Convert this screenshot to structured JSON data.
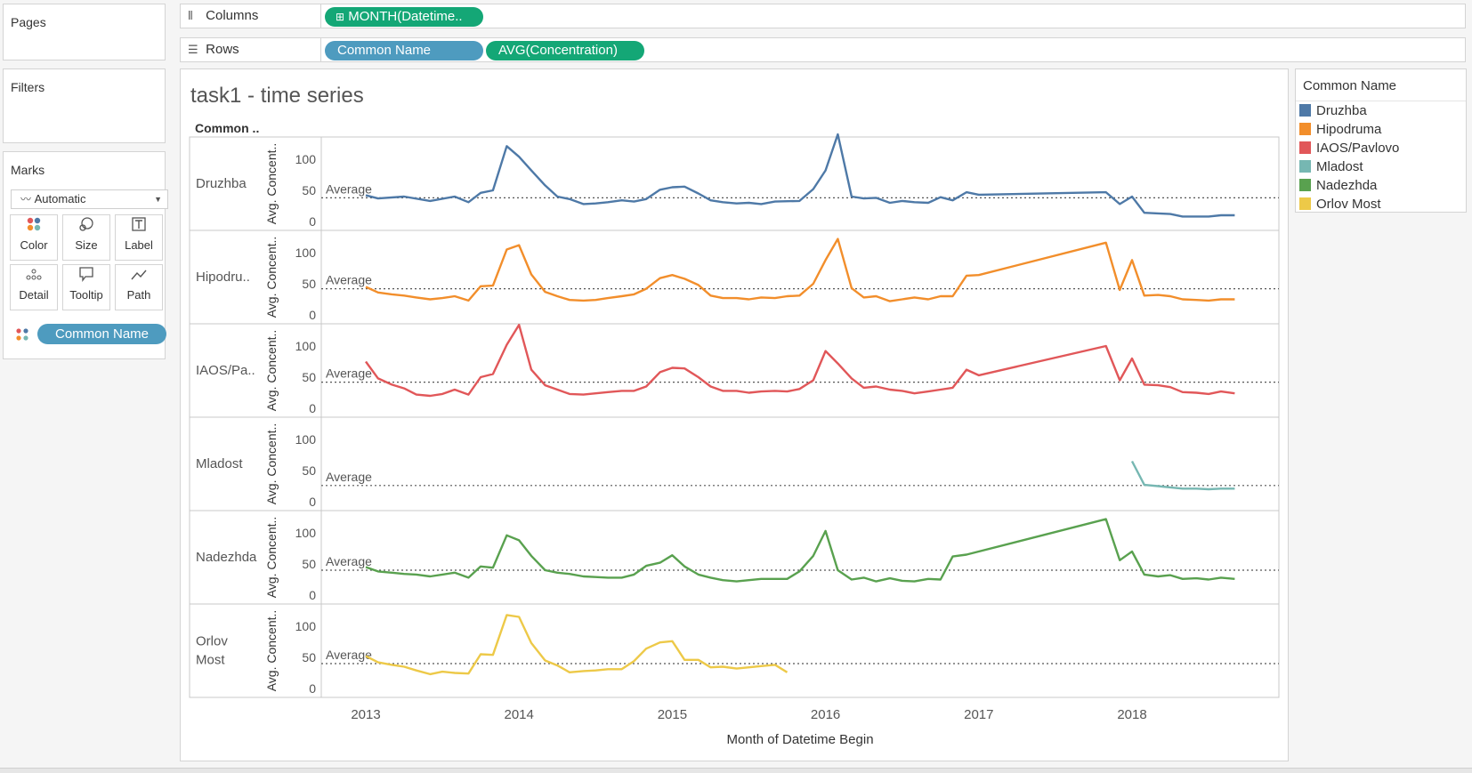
{
  "pages": {
    "title": "Pages"
  },
  "filters": {
    "title": "Filters"
  },
  "columns": {
    "label": "Columns",
    "icon": "columns-icon",
    "pill": "MONTH(Datetime.."
  },
  "rows": {
    "label": "Rows",
    "icon": "rows-icon",
    "pills": [
      "Common Name",
      "AVG(Concentration)"
    ]
  },
  "marks": {
    "title": "Marks",
    "type": "Automatic",
    "buttons": [
      "Color",
      "Size",
      "Label",
      "Detail",
      "Tooltip",
      "Path"
    ],
    "pill": "Common Name"
  },
  "viz": {
    "title": "task1 - time series",
    "row_header": "Common ..",
    "y_axis_title": "Avg. Concent..",
    "ref_line_label": "Average",
    "x_axis_title": "Month of Datetime Begin",
    "x_ticks": [
      "2013",
      "2014",
      "2015",
      "2016",
      "2017",
      "2018"
    ],
    "y_ticks": [
      "100",
      "50",
      "0"
    ]
  },
  "legend": {
    "title": "Common Name",
    "items": [
      {
        "label": "Druzhba",
        "color": "#4e79a7"
      },
      {
        "label": "Hipodruma",
        "color": "#f28e2b"
      },
      {
        "label": "IAOS/Pavlovo",
        "color": "#e15759"
      },
      {
        "label": "Mladost",
        "color": "#76b7b2"
      },
      {
        "label": "Nadezhda",
        "color": "#59a14f"
      },
      {
        "label": "Orlov Most",
        "color": "#edc948"
      }
    ]
  },
  "chart_data": {
    "type": "line",
    "title": "task1 - time series",
    "xlabel": "Month of Datetime Begin",
    "ylabel": "Avg. Concent..",
    "x_ticks": [
      "2013",
      "2014",
      "2015",
      "2016",
      "2017",
      "2018"
    ],
    "ylim": [
      0,
      140
    ],
    "reference_line": "Average",
    "panels": [
      {
        "name": "Druzhba",
        "header": "Druzhba",
        "color": "#4e79a7",
        "average": 38,
        "points": [
          [
            2013.0,
            42
          ],
          [
            2013.08,
            37
          ],
          [
            2013.25,
            40
          ],
          [
            2013.42,
            33
          ],
          [
            2013.58,
            40
          ],
          [
            2013.67,
            31
          ],
          [
            2013.75,
            46
          ],
          [
            2013.83,
            50
          ],
          [
            2013.92,
            121
          ],
          [
            2014.0,
            104
          ],
          [
            2014.08,
            82
          ],
          [
            2014.17,
            58
          ],
          [
            2014.25,
            40
          ],
          [
            2014.33,
            36
          ],
          [
            2014.42,
            28
          ],
          [
            2014.5,
            29
          ],
          [
            2014.58,
            31
          ],
          [
            2014.67,
            34
          ],
          [
            2014.75,
            32
          ],
          [
            2014.83,
            36
          ],
          [
            2014.92,
            51
          ],
          [
            2015.0,
            55
          ],
          [
            2015.08,
            56
          ],
          [
            2015.17,
            45
          ],
          [
            2015.25,
            34
          ],
          [
            2015.33,
            31
          ],
          [
            2015.42,
            29
          ],
          [
            2015.5,
            30
          ],
          [
            2015.58,
            28
          ],
          [
            2015.67,
            32
          ],
          [
            2015.83,
            33
          ],
          [
            2015.92,
            52
          ],
          [
            2016.0,
            82
          ],
          [
            2016.08,
            140
          ],
          [
            2016.17,
            40
          ],
          [
            2016.25,
            37
          ],
          [
            2016.33,
            38
          ],
          [
            2016.42,
            30
          ],
          [
            2016.5,
            33
          ],
          [
            2016.58,
            31
          ],
          [
            2016.67,
            30
          ],
          [
            2016.75,
            39
          ],
          [
            2016.83,
            34
          ],
          [
            2016.92,
            47
          ],
          [
            2017.0,
            43
          ],
          [
            2017.83,
            47
          ],
          [
            2017.92,
            28
          ],
          [
            2018.0,
            40
          ],
          [
            2018.08,
            14
          ],
          [
            2018.17,
            13
          ],
          [
            2018.25,
            12
          ],
          [
            2018.33,
            8
          ],
          [
            2018.42,
            8
          ],
          [
            2018.5,
            8
          ],
          [
            2018.58,
            10
          ],
          [
            2018.67,
            10
          ]
        ]
      },
      {
        "name": "Hipodruma",
        "header": "Hipodru..",
        "color": "#f28e2b",
        "average": 42,
        "points": [
          [
            2013.0,
            45
          ],
          [
            2013.08,
            36
          ],
          [
            2013.17,
            33
          ],
          [
            2013.25,
            31
          ],
          [
            2013.33,
            28
          ],
          [
            2013.42,
            25
          ],
          [
            2013.5,
            27
          ],
          [
            2013.58,
            30
          ],
          [
            2013.67,
            23
          ],
          [
            2013.75,
            46
          ],
          [
            2013.83,
            47
          ],
          [
            2013.92,
            105
          ],
          [
            2014.0,
            112
          ],
          [
            2014.08,
            65
          ],
          [
            2014.17,
            37
          ],
          [
            2014.25,
            30
          ],
          [
            2014.33,
            24
          ],
          [
            2014.42,
            23
          ],
          [
            2014.5,
            24
          ],
          [
            2014.58,
            27
          ],
          [
            2014.67,
            30
          ],
          [
            2014.75,
            33
          ],
          [
            2014.83,
            42
          ],
          [
            2014.92,
            59
          ],
          [
            2015.0,
            64
          ],
          [
            2015.08,
            58
          ],
          [
            2015.17,
            48
          ],
          [
            2015.25,
            31
          ],
          [
            2015.33,
            27
          ],
          [
            2015.42,
            27
          ],
          [
            2015.5,
            25
          ],
          [
            2015.58,
            28
          ],
          [
            2015.67,
            27
          ],
          [
            2015.75,
            30
          ],
          [
            2015.83,
            31
          ],
          [
            2015.92,
            50
          ],
          [
            2016.0,
            88
          ],
          [
            2016.08,
            122
          ],
          [
            2016.17,
            43
          ],
          [
            2016.25,
            28
          ],
          [
            2016.33,
            30
          ],
          [
            2016.42,
            22
          ],
          [
            2016.5,
            25
          ],
          [
            2016.58,
            28
          ],
          [
            2016.67,
            25
          ],
          [
            2016.75,
            30
          ],
          [
            2016.83,
            30
          ],
          [
            2016.92,
            63
          ],
          [
            2017.0,
            64
          ],
          [
            2017.83,
            116
          ],
          [
            2017.92,
            40
          ],
          [
            2018.0,
            88
          ],
          [
            2018.08,
            31
          ],
          [
            2018.17,
            32
          ],
          [
            2018.25,
            30
          ],
          [
            2018.33,
            25
          ],
          [
            2018.42,
            24
          ],
          [
            2018.5,
            23
          ],
          [
            2018.58,
            25
          ],
          [
            2018.67,
            25
          ]
        ]
      },
      {
        "name": "IAOS/Pavlovo",
        "header": "IAOS/Pa..",
        "color": "#e15759",
        "average": 42,
        "points": [
          [
            2013.0,
            75
          ],
          [
            2013.08,
            48
          ],
          [
            2013.17,
            38
          ],
          [
            2013.25,
            32
          ],
          [
            2013.33,
            22
          ],
          [
            2013.42,
            20
          ],
          [
            2013.5,
            23
          ],
          [
            2013.58,
            30
          ],
          [
            2013.67,
            22
          ],
          [
            2013.75,
            50
          ],
          [
            2013.83,
            55
          ],
          [
            2013.92,
            102
          ],
          [
            2014.0,
            134
          ],
          [
            2014.08,
            62
          ],
          [
            2014.17,
            37
          ],
          [
            2014.25,
            30
          ],
          [
            2014.33,
            23
          ],
          [
            2014.42,
            22
          ],
          [
            2014.5,
            24
          ],
          [
            2014.58,
            26
          ],
          [
            2014.67,
            28
          ],
          [
            2014.75,
            28
          ],
          [
            2014.83,
            35
          ],
          [
            2014.92,
            58
          ],
          [
            2015.0,
            65
          ],
          [
            2015.08,
            64
          ],
          [
            2015.17,
            50
          ],
          [
            2015.25,
            35
          ],
          [
            2015.33,
            28
          ],
          [
            2015.42,
            28
          ],
          [
            2015.5,
            25
          ],
          [
            2015.58,
            27
          ],
          [
            2015.67,
            28
          ],
          [
            2015.75,
            27
          ],
          [
            2015.83,
            31
          ],
          [
            2015.92,
            45
          ],
          [
            2016.0,
            92
          ],
          [
            2016.08,
            72
          ],
          [
            2016.17,
            48
          ],
          [
            2016.25,
            33
          ],
          [
            2016.33,
            35
          ],
          [
            2016.42,
            30
          ],
          [
            2016.5,
            28
          ],
          [
            2016.58,
            24
          ],
          [
            2016.67,
            27
          ],
          [
            2016.75,
            30
          ],
          [
            2016.83,
            33
          ],
          [
            2016.92,
            62
          ],
          [
            2017.0,
            53
          ],
          [
            2017.83,
            100
          ],
          [
            2017.92,
            45
          ],
          [
            2018.0,
            80
          ],
          [
            2018.08,
            38
          ],
          [
            2018.17,
            37
          ],
          [
            2018.25,
            34
          ],
          [
            2018.33,
            26
          ],
          [
            2018.42,
            25
          ],
          [
            2018.5,
            23
          ],
          [
            2018.58,
            27
          ],
          [
            2018.67,
            24
          ]
        ]
      },
      {
        "name": "Mladost",
        "header": "Mladost",
        "color": "#76b7b2",
        "average": 26,
        "points": [
          [
            2018.0,
            65
          ],
          [
            2018.08,
            27
          ],
          [
            2018.17,
            25
          ],
          [
            2018.25,
            23
          ],
          [
            2018.33,
            21
          ],
          [
            2018.42,
            21
          ],
          [
            2018.5,
            20
          ],
          [
            2018.58,
            21
          ],
          [
            2018.67,
            21
          ]
        ]
      },
      {
        "name": "Nadezhda",
        "header": "Nadezhda",
        "color": "#59a14f",
        "average": 40,
        "points": [
          [
            2013.0,
            45
          ],
          [
            2013.08,
            38
          ],
          [
            2013.17,
            36
          ],
          [
            2013.25,
            34
          ],
          [
            2013.33,
            33
          ],
          [
            2013.42,
            30
          ],
          [
            2013.5,
            33
          ],
          [
            2013.58,
            36
          ],
          [
            2013.67,
            28
          ],
          [
            2013.75,
            46
          ],
          [
            2013.83,
            44
          ],
          [
            2013.92,
            96
          ],
          [
            2014.0,
            88
          ],
          [
            2014.08,
            63
          ],
          [
            2014.17,
            40
          ],
          [
            2014.25,
            36
          ],
          [
            2014.33,
            34
          ],
          [
            2014.42,
            30
          ],
          [
            2014.5,
            29
          ],
          [
            2014.58,
            28
          ],
          [
            2014.67,
            28
          ],
          [
            2014.75,
            33
          ],
          [
            2014.83,
            47
          ],
          [
            2014.92,
            52
          ],
          [
            2015.0,
            64
          ],
          [
            2015.08,
            46
          ],
          [
            2015.17,
            33
          ],
          [
            2015.25,
            28
          ],
          [
            2015.33,
            24
          ],
          [
            2015.42,
            22
          ],
          [
            2015.5,
            24
          ],
          [
            2015.58,
            26
          ],
          [
            2015.67,
            26
          ],
          [
            2015.75,
            26
          ],
          [
            2015.83,
            38
          ],
          [
            2015.92,
            63
          ],
          [
            2016.0,
            103
          ],
          [
            2016.08,
            40
          ],
          [
            2016.17,
            25
          ],
          [
            2016.25,
            28
          ],
          [
            2016.33,
            22
          ],
          [
            2016.42,
            27
          ],
          [
            2016.5,
            23
          ],
          [
            2016.58,
            22
          ],
          [
            2016.67,
            26
          ],
          [
            2016.75,
            25
          ],
          [
            2016.83,
            62
          ],
          [
            2016.92,
            65
          ],
          [
            2017.83,
            122
          ],
          [
            2017.92,
            56
          ],
          [
            2018.0,
            70
          ],
          [
            2018.08,
            33
          ],
          [
            2018.17,
            30
          ],
          [
            2018.25,
            32
          ],
          [
            2018.33,
            26
          ],
          [
            2018.42,
            27
          ],
          [
            2018.5,
            25
          ],
          [
            2018.58,
            28
          ],
          [
            2018.67,
            26
          ]
        ]
      },
      {
        "name": "Orlov Most",
        "header": "Orlov Most",
        "color": "#edc948",
        "average": 40,
        "points": [
          [
            2013.0,
            52
          ],
          [
            2013.08,
            42
          ],
          [
            2013.17,
            38
          ],
          [
            2013.25,
            35
          ],
          [
            2013.33,
            29
          ],
          [
            2013.42,
            23
          ],
          [
            2013.5,
            27
          ],
          [
            2013.58,
            25
          ],
          [
            2013.67,
            24
          ],
          [
            2013.75,
            55
          ],
          [
            2013.83,
            54
          ],
          [
            2013.92,
            118
          ],
          [
            2014.0,
            115
          ],
          [
            2014.08,
            73
          ],
          [
            2014.17,
            45
          ],
          [
            2014.25,
            37
          ],
          [
            2014.33,
            26
          ],
          [
            2014.42,
            28
          ],
          [
            2014.5,
            29
          ],
          [
            2014.58,
            31
          ],
          [
            2014.67,
            31
          ],
          [
            2014.75,
            44
          ],
          [
            2014.83,
            64
          ],
          [
            2014.92,
            74
          ],
          [
            2015.0,
            76
          ],
          [
            2015.08,
            46
          ],
          [
            2015.17,
            46
          ],
          [
            2015.25,
            34
          ],
          [
            2015.33,
            35
          ],
          [
            2015.42,
            32
          ],
          [
            2015.5,
            34
          ],
          [
            2015.58,
            36
          ],
          [
            2015.67,
            38
          ],
          [
            2015.75,
            26
          ]
        ]
      }
    ]
  }
}
